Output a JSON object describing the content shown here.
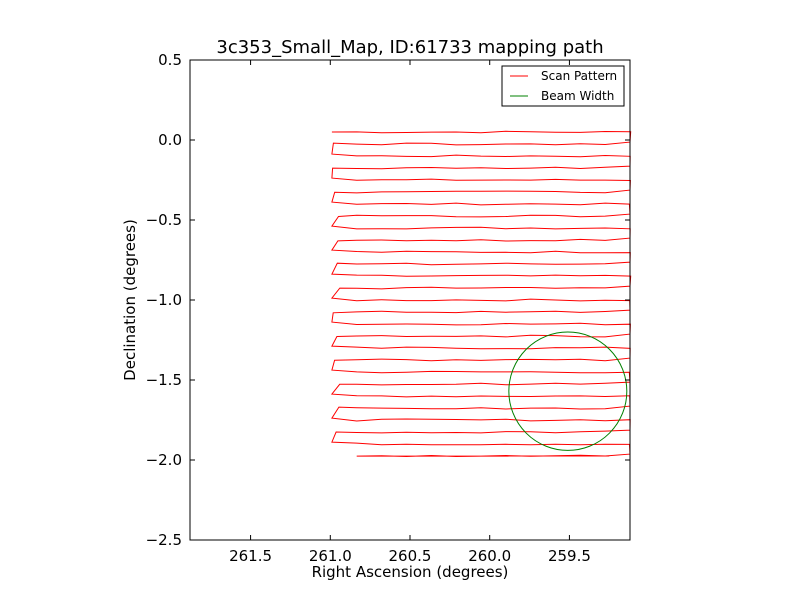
{
  "chart_data": {
    "type": "line",
    "title": "3c353_Small_Map, ID:61733 mapping path",
    "xlabel": "Right Ascension (degrees)",
    "ylabel": "Declination (degrees)",
    "xlim": [
      261.88,
      259.12
    ],
    "ylim": [
      -2.5,
      0.5
    ],
    "x_inverted": true,
    "xticks": [
      261.5,
      261.0,
      260.5,
      260.0,
      259.5
    ],
    "xtick_labels": [
      "261.5",
      "261.0",
      "260.5",
      "260.0",
      "259.5"
    ],
    "yticks": [
      0.5,
      0.0,
      -0.5,
      -1.0,
      -1.5,
      -2.0,
      -2.5
    ],
    "ytick_labels": [
      "0.5",
      "0.0",
      "−0.5",
      "−1.0",
      "−1.5",
      "−2.0",
      "−2.5"
    ],
    "grid": false,
    "legend_position": "top-right",
    "series": [
      {
        "name": "Scan Pattern",
        "color": "#ff0000",
        "scan_ra_east": 260.99,
        "scan_ra_west": 259.12,
        "scan_dec_start": 0.05,
        "scan_dec_step": -0.075,
        "scan_rows": 28,
        "scan_ra_end": 259.25
      },
      {
        "name": "Beam Width",
        "color": "#008000",
        "center": [
          259.51,
          -1.57
        ],
        "radius": 0.37
      }
    ]
  }
}
